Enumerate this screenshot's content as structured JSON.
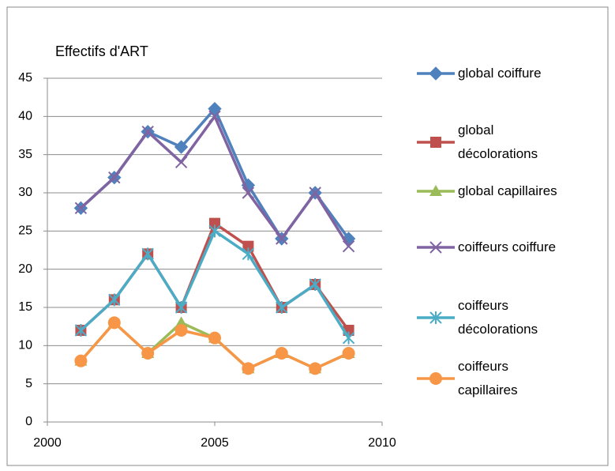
{
  "chart_data": {
    "type": "line",
    "title": "Effectifs d'ART",
    "x": [
      2001,
      2002,
      2003,
      2004,
      2005,
      2006,
      2007,
      2008,
      2009
    ],
    "series": [
      {
        "name": "global coiffure",
        "color": "#4f81bd",
        "marker": "diamond",
        "values": [
          28,
          32,
          38,
          36,
          41,
          31,
          24,
          30,
          24
        ]
      },
      {
        "name": "global décolorations",
        "color": "#c0504d",
        "marker": "square",
        "values": [
          12,
          16,
          22,
          15,
          26,
          23,
          15,
          18,
          12
        ]
      },
      {
        "name": "global capillaires",
        "color": "#9bbb59",
        "marker": "triangle",
        "values": [
          8,
          13,
          9,
          13,
          11,
          7,
          9,
          7,
          9
        ]
      },
      {
        "name": "coiffeurs coiffure",
        "color": "#8064a2",
        "marker": "x",
        "values": [
          28,
          32,
          38,
          34,
          40,
          30,
          24,
          30,
          23
        ]
      },
      {
        "name": "coiffeurs décolorations",
        "color": "#4bacc6",
        "marker": "star",
        "values": [
          12,
          16,
          22,
          15,
          25,
          22,
          15,
          18,
          11
        ]
      },
      {
        "name": "coiffeurs capillaires",
        "color": "#f79646",
        "marker": "circle",
        "values": [
          8,
          13,
          9,
          12,
          11,
          7,
          9,
          7,
          9
        ]
      }
    ],
    "xlim": [
      2000,
      2010
    ],
    "xticks": [
      2000,
      2005,
      2010
    ],
    "ylim": [
      0,
      45
    ],
    "yticks": [
      0,
      5,
      10,
      15,
      20,
      25,
      30,
      35,
      40,
      45
    ],
    "grid": true,
    "legend": "right"
  }
}
